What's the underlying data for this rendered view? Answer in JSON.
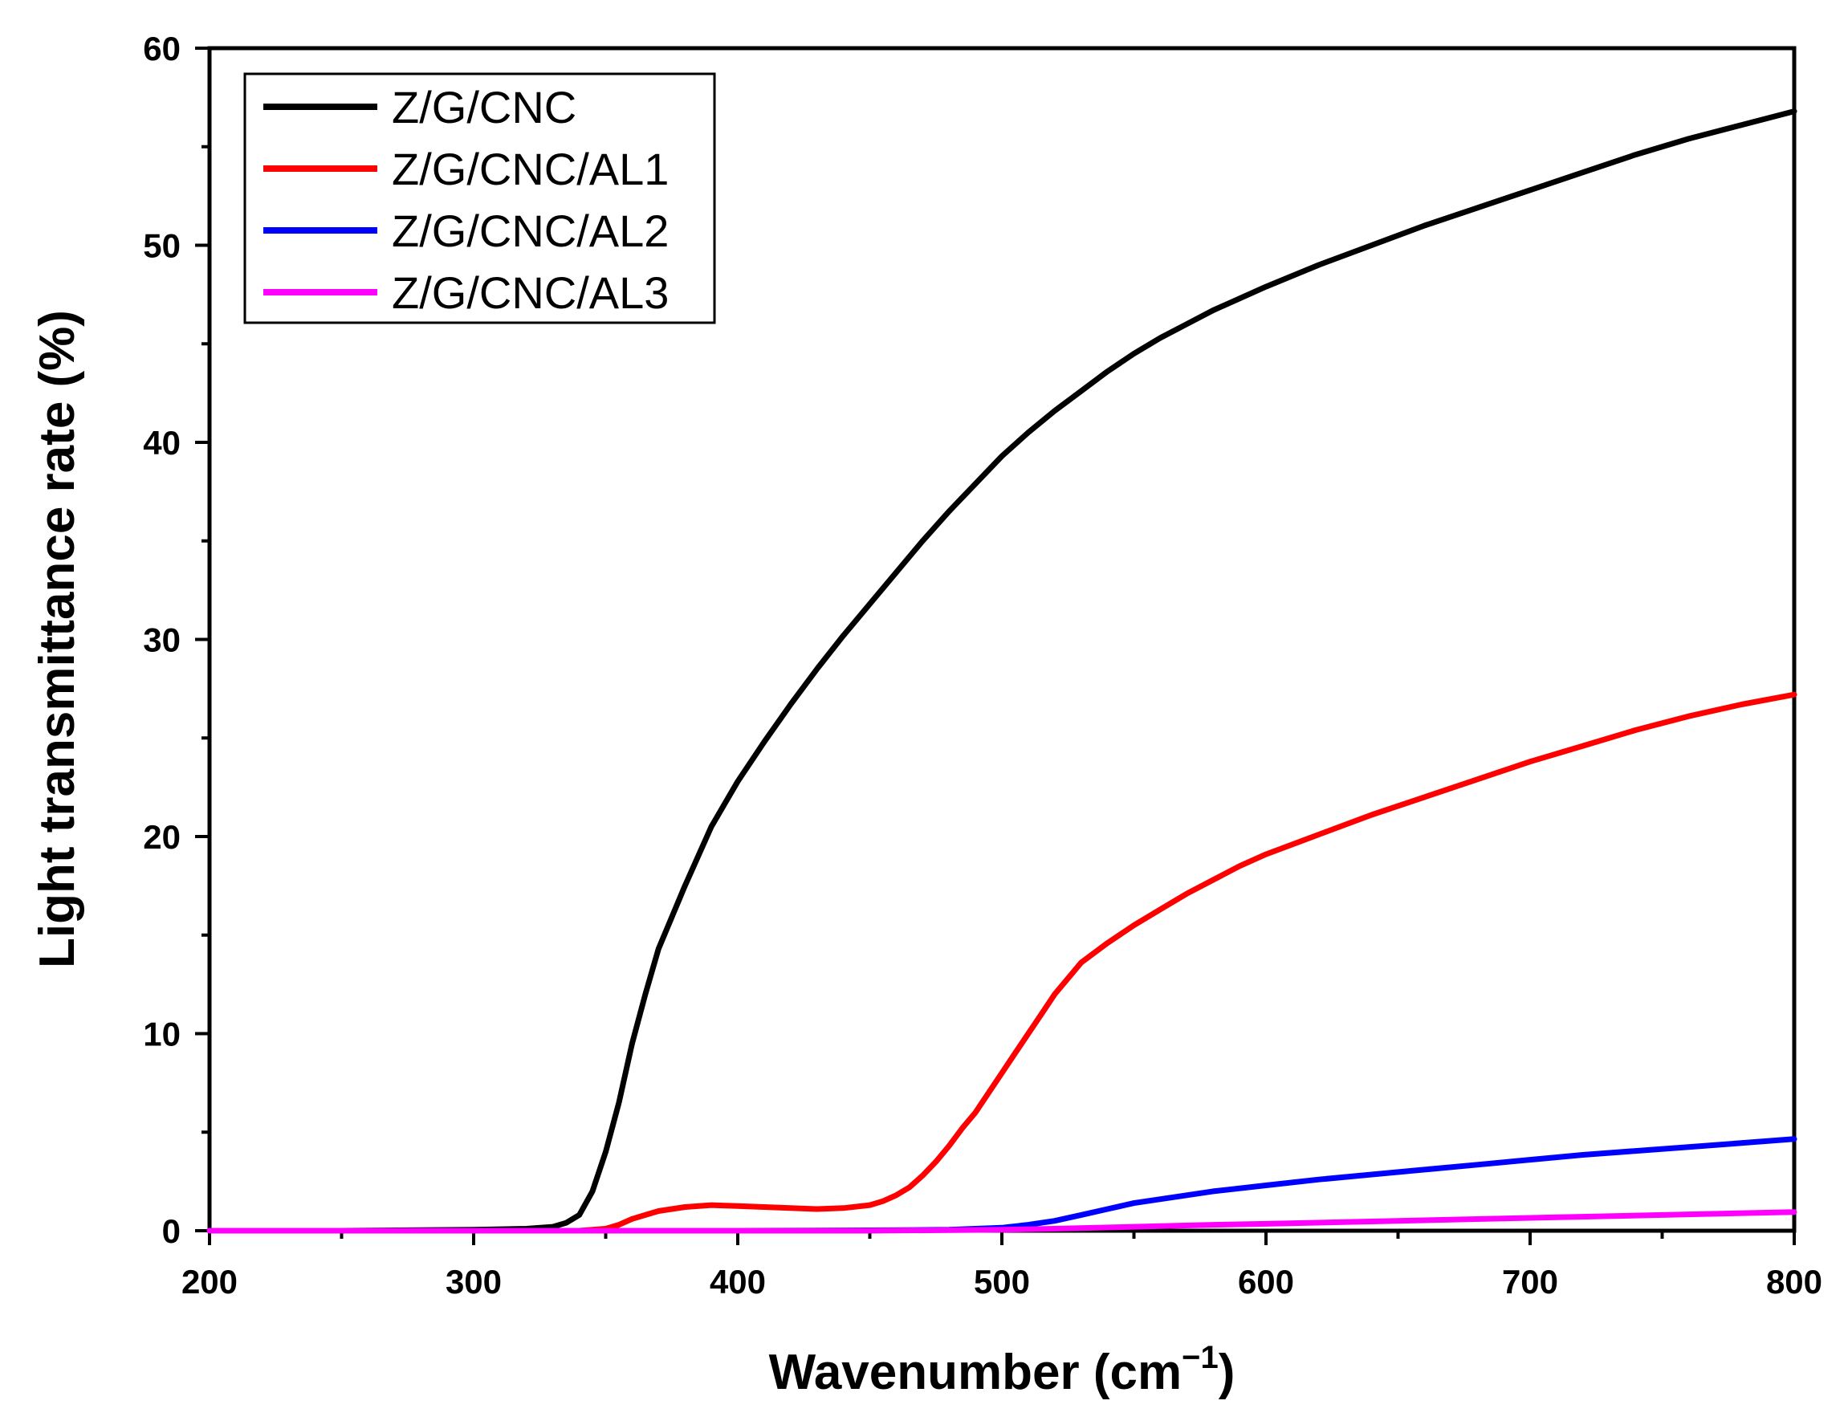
{
  "chart_data": {
    "type": "line",
    "title": "",
    "xlabel": "Wavenumber (cm",
    "xlabel_sup": "−1",
    "xlabel_close": ")",
    "ylabel": "Light transmittance rate (%)",
    "xlim": [
      200,
      800
    ],
    "ylim": [
      0,
      60
    ],
    "xticks": [
      200,
      300,
      400,
      500,
      600,
      700,
      800
    ],
    "yticks": [
      0,
      10,
      20,
      30,
      40,
      50,
      60
    ],
    "grid": false,
    "legend_position": "top-left",
    "series": [
      {
        "name": "Z/G/CNC",
        "color": "#000000",
        "points": [
          [
            200,
            0
          ],
          [
            250,
            0
          ],
          [
            300,
            0.05
          ],
          [
            320,
            0.1
          ],
          [
            330,
            0.2
          ],
          [
            335,
            0.4
          ],
          [
            340,
            0.8
          ],
          [
            345,
            2
          ],
          [
            350,
            4
          ],
          [
            355,
            6.5
          ],
          [
            360,
            9.5
          ],
          [
            365,
            12
          ],
          [
            370,
            14.3
          ],
          [
            380,
            17.5
          ],
          [
            390,
            20.5
          ],
          [
            400,
            22.8
          ],
          [
            410,
            24.8
          ],
          [
            420,
            26.7
          ],
          [
            430,
            28.5
          ],
          [
            440,
            30.2
          ],
          [
            450,
            31.8
          ],
          [
            460,
            33.4
          ],
          [
            470,
            35
          ],
          [
            480,
            36.5
          ],
          [
            490,
            37.9
          ],
          [
            500,
            39.3
          ],
          [
            510,
            40.5
          ],
          [
            520,
            41.6
          ],
          [
            530,
            42.6
          ],
          [
            540,
            43.6
          ],
          [
            550,
            44.5
          ],
          [
            560,
            45.3
          ],
          [
            570,
            46
          ],
          [
            580,
            46.7
          ],
          [
            590,
            47.3
          ],
          [
            600,
            47.9
          ],
          [
            620,
            49
          ],
          [
            640,
            50
          ],
          [
            660,
            51
          ],
          [
            680,
            51.9
          ],
          [
            700,
            52.8
          ],
          [
            720,
            53.7
          ],
          [
            740,
            54.6
          ],
          [
            760,
            55.4
          ],
          [
            780,
            56.1
          ],
          [
            800,
            56.8
          ]
        ]
      },
      {
        "name": "Z/G/CNC/AL1",
        "color": "#ff0000",
        "points": [
          [
            200,
            0
          ],
          [
            300,
            0
          ],
          [
            340,
            0
          ],
          [
            350,
            0.1
          ],
          [
            355,
            0.3
          ],
          [
            360,
            0.6
          ],
          [
            365,
            0.8
          ],
          [
            370,
            1
          ],
          [
            380,
            1.2
          ],
          [
            390,
            1.3
          ],
          [
            400,
            1.25
          ],
          [
            410,
            1.2
          ],
          [
            420,
            1.15
          ],
          [
            430,
            1.1
          ],
          [
            440,
            1.15
          ],
          [
            450,
            1.3
          ],
          [
            455,
            1.5
          ],
          [
            460,
            1.8
          ],
          [
            465,
            2.2
          ],
          [
            470,
            2.8
          ],
          [
            475,
            3.5
          ],
          [
            480,
            4.3
          ],
          [
            485,
            5.2
          ],
          [
            490,
            6
          ],
          [
            495,
            7
          ],
          [
            500,
            8
          ],
          [
            505,
            9
          ],
          [
            510,
            10
          ],
          [
            515,
            11
          ],
          [
            520,
            12
          ],
          [
            525,
            12.8
          ],
          [
            530,
            13.6
          ],
          [
            540,
            14.6
          ],
          [
            550,
            15.5
          ],
          [
            560,
            16.3
          ],
          [
            570,
            17.1
          ],
          [
            580,
            17.8
          ],
          [
            590,
            18.5
          ],
          [
            600,
            19.1
          ],
          [
            620,
            20.1
          ],
          [
            640,
            21.1
          ],
          [
            660,
            22
          ],
          [
            680,
            22.9
          ],
          [
            700,
            23.8
          ],
          [
            720,
            24.6
          ],
          [
            740,
            25.4
          ],
          [
            760,
            26.1
          ],
          [
            780,
            26.7
          ],
          [
            800,
            27.2
          ]
        ]
      },
      {
        "name": "Z/G/CNC/AL2",
        "color": "#0000ff",
        "points": [
          [
            200,
            0
          ],
          [
            400,
            0
          ],
          [
            450,
            0.02
          ],
          [
            480,
            0.05
          ],
          [
            500,
            0.15
          ],
          [
            510,
            0.3
          ],
          [
            520,
            0.5
          ],
          [
            530,
            0.8
          ],
          [
            540,
            1.1
          ],
          [
            550,
            1.4
          ],
          [
            560,
            1.6
          ],
          [
            570,
            1.8
          ],
          [
            580,
            2
          ],
          [
            600,
            2.3
          ],
          [
            620,
            2.6
          ],
          [
            640,
            2.85
          ],
          [
            660,
            3.1
          ],
          [
            680,
            3.35
          ],
          [
            700,
            3.6
          ],
          [
            720,
            3.85
          ],
          [
            740,
            4.05
          ],
          [
            760,
            4.25
          ],
          [
            780,
            4.45
          ],
          [
            800,
            4.65
          ]
        ]
      },
      {
        "name": "Z/G/CNC/AL3",
        "color": "#ff00ff",
        "points": [
          [
            200,
            0
          ],
          [
            450,
            0
          ],
          [
            500,
            0.05
          ],
          [
            520,
            0.1
          ],
          [
            550,
            0.2
          ],
          [
            580,
            0.3
          ],
          [
            600,
            0.35
          ],
          [
            650,
            0.5
          ],
          [
            700,
            0.65
          ],
          [
            750,
            0.8
          ],
          [
            800,
            0.95
          ]
        ]
      }
    ]
  }
}
